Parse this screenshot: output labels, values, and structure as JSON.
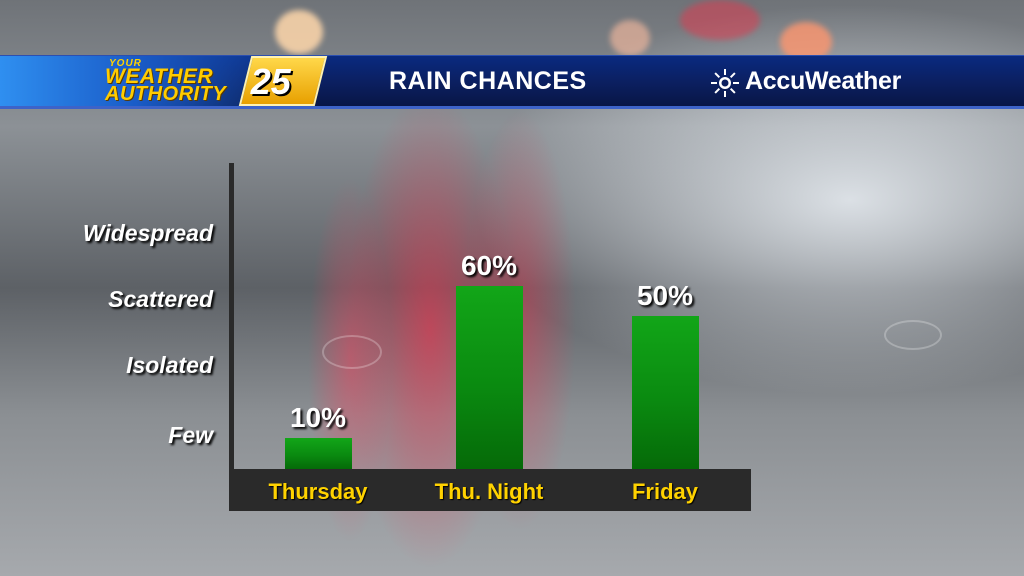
{
  "header": {
    "logo": {
      "top": "YOUR",
      "line1": "WEATHER",
      "line2": "AUTHORITY",
      "number": "25"
    },
    "title": "RAIN CHANCES",
    "brand": "AccuWeather"
  },
  "icons": {
    "brand_icon": "sun-icon"
  },
  "colors": {
    "bar": "#0a8a10",
    "category_text": "#ffd200",
    "header": "#0b1f5f"
  },
  "chart_data": {
    "type": "bar",
    "title": "RAIN CHANCES",
    "categories": [
      "Thursday",
      "Thu. Night",
      "Friday"
    ],
    "values": [
      10,
      60,
      50
    ],
    "value_labels": [
      "10%",
      "60%",
      "50%"
    ],
    "y_tick_labels": [
      "Few",
      "Isolated",
      "Scattered",
      "Widespread"
    ],
    "ylim": [
      0,
      80
    ],
    "grid": false
  }
}
